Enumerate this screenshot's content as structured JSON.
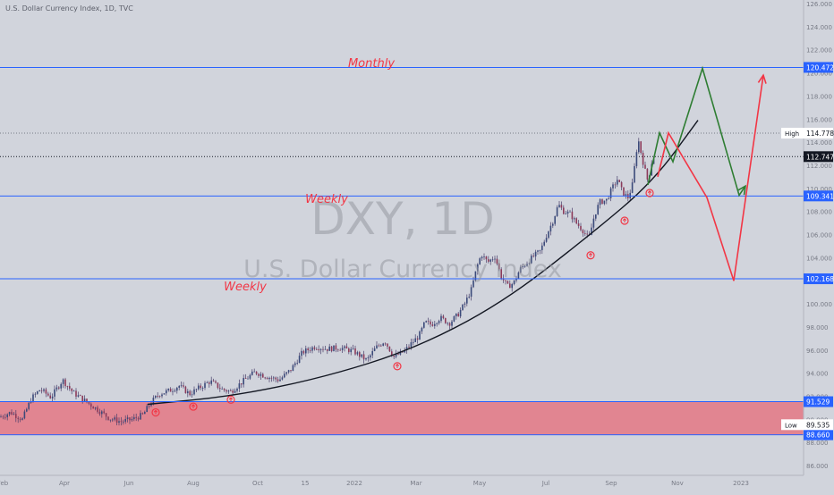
{
  "header": {
    "title": "U.S. Dollar Currency Index, 1D, TVC"
  },
  "watermark": {
    "symbol": "DXY, 1D",
    "name": "U.S. Dollar Currency Index"
  },
  "chart_data": {
    "type": "candlestick",
    "x_ticks": [
      "Feb",
      "Apr",
      "Jun",
      "Aug",
      "Oct",
      "15",
      "2022",
      "Mar",
      "May",
      "Jul",
      "Sep",
      "Nov",
      "2023"
    ],
    "y_ticks": [
      "126.000",
      "124.000",
      "122.000",
      "120.000",
      "118.000",
      "116.000",
      "114.000",
      "112.000",
      "110.000",
      "108.000",
      "106.000",
      "104.000",
      "102.000",
      "100.000",
      "98.000",
      "96.000",
      "94.000",
      "92.000",
      "90.000",
      "88.000",
      "86.000"
    ],
    "ylim": [
      86,
      127.5
    ],
    "price_path": [
      [
        0,
        90.2
      ],
      [
        12,
        90.6
      ],
      [
        25,
        90.0
      ],
      [
        35,
        91.8
      ],
      [
        45,
        92.6
      ],
      [
        57,
        91.9
      ],
      [
        70,
        93.4
      ],
      [
        82,
        92.3
      ],
      [
        95,
        91.6
      ],
      [
        108,
        90.9
      ],
      [
        122,
        90.1
      ],
      [
        135,
        89.8
      ],
      [
        148,
        90.0
      ],
      [
        160,
        90.4
      ],
      [
        168,
        91.4
      ],
      [
        178,
        92.2
      ],
      [
        190,
        92.5
      ],
      [
        200,
        92.9
      ],
      [
        212,
        92.2
      ],
      [
        222,
        92.7
      ],
      [
        235,
        93.3
      ],
      [
        248,
        92.6
      ],
      [
        258,
        92.4
      ],
      [
        270,
        93.2
      ],
      [
        285,
        94.1
      ],
      [
        298,
        93.7
      ],
      [
        312,
        93.4
      ],
      [
        325,
        94.3
      ],
      [
        338,
        95.8
      ],
      [
        352,
        96.3
      ],
      [
        365,
        96.1
      ],
      [
        380,
        96.2
      ],
      [
        395,
        95.9
      ],
      [
        410,
        95.1
      ],
      [
        420,
        96.2
      ],
      [
        430,
        96.8
      ],
      [
        440,
        95.4
      ],
      [
        452,
        95.9
      ],
      [
        460,
        96.6
      ],
      [
        468,
        97.2
      ],
      [
        475,
        98.4
      ],
      [
        482,
        98.2
      ],
      [
        492,
        98.8
      ],
      [
        502,
        98.3
      ],
      [
        512,
        99.1
      ],
      [
        520,
        100.1
      ],
      [
        527,
        101.3
      ],
      [
        533,
        103.2
      ],
      [
        538,
        104.3
      ],
      [
        545,
        103.6
      ],
      [
        553,
        104.1
      ],
      [
        560,
        102.4
      ],
      [
        567,
        101.5
      ],
      [
        574,
        101.8
      ],
      [
        581,
        103.0
      ],
      [
        588,
        103.5
      ],
      [
        596,
        104.1
      ],
      [
        604,
        104.6
      ],
      [
        611,
        106.0
      ],
      [
        618,
        107.2
      ],
      [
        624,
        108.6
      ],
      [
        630,
        108.0
      ],
      [
        637,
        107.8
      ],
      [
        644,
        107.0
      ],
      [
        651,
        106.4
      ],
      [
        658,
        105.6
      ],
      [
        664,
        107.6
      ],
      [
        670,
        108.8
      ],
      [
        678,
        109.0
      ],
      [
        684,
        110.0
      ],
      [
        690,
        110.8
      ],
      [
        696,
        109.6
      ],
      [
        702,
        109.2
      ],
      [
        707,
        110.4
      ],
      [
        711,
        113.2
      ],
      [
        714,
        114.1
      ],
      [
        717,
        112.8
      ],
      [
        721,
        111.5
      ],
      [
        724,
        110.6
      ],
      [
        728,
        112.2
      ],
      [
        731,
        112.7
      ]
    ],
    "horizontal_levels": [
      {
        "label": "Monthly",
        "value": 120.472
      },
      {
        "label": "Weekly",
        "value": 109.341
      },
      {
        "label": "Weekly",
        "value": 102.168
      },
      {
        "label": "",
        "value": 91.529
      },
      {
        "label": "",
        "value": 88.66
      }
    ],
    "support_zone": {
      "from": 88.66,
      "to": 91.529
    },
    "high": {
      "label": "High",
      "value": "114.778"
    },
    "low": {
      "label": "Low",
      "value": "89.535"
    },
    "last_price": "112.747",
    "level_labels": [
      "120.472",
      "109.341",
      "102.168",
      "91.529",
      "88.660"
    ],
    "annotations": [
      "Monthly",
      "Weekly",
      "Weekly"
    ],
    "bounce_markers": [
      {
        "x": 174,
        "value": 90.6
      },
      {
        "x": 216,
        "value": 91.1
      },
      {
        "x": 258,
        "value": 91.7
      },
      {
        "x": 444,
        "value": 94.6
      },
      {
        "x": 660,
        "value": 104.2
      },
      {
        "x": 698,
        "value": 107.2
      },
      {
        "x": 726,
        "value": 109.6
      }
    ],
    "trend_curve": [
      [
        165,
        91.3
      ],
      [
        260,
        92.0
      ],
      [
        360,
        93.6
      ],
      [
        460,
        96.0
      ],
      [
        560,
        100.0
      ],
      [
        660,
        106.0
      ],
      [
        730,
        110.6
      ],
      [
        780,
        115.9
      ]
    ],
    "projection_green": [
      [
        724,
        110.3
      ],
      [
        737,
        114.8
      ],
      [
        752,
        112.3
      ],
      [
        785,
        120.4
      ],
      [
        826,
        109.4
      ],
      [
        833,
        110.2
      ]
    ],
    "projection_red": [
      [
        735,
        111.0
      ],
      [
        747,
        114.8
      ],
      [
        790,
        109.2
      ],
      [
        820,
        102.0
      ],
      [
        853,
        119.8
      ]
    ]
  },
  "colors": {
    "background": "#d1d4dc",
    "level_line": "#2962ff",
    "zone_fill": "#f23645",
    "annotation": "#f23645",
    "green_projection": "#2e7d32",
    "red_projection": "#f23645",
    "up_candle": "#26a69a",
    "down_candle": "#ef5350"
  }
}
